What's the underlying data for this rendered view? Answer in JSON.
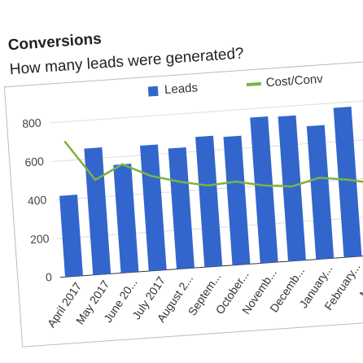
{
  "chart_data": {
    "type": "bar",
    "title": "Conversions",
    "subtitle": "How many leads were generated?",
    "categories": [
      "April 2017",
      "May 2017",
      "June 20...",
      "July 2017",
      "August 2...",
      "Septem...",
      "October...",
      "Novemb...",
      "Decemb...",
      "January...",
      "February...",
      "March..."
    ],
    "series": [
      {
        "name": "Leads",
        "type": "bar",
        "color": "#3366cc",
        "values": [
          420,
          655,
          560,
          650,
          625,
          675,
          665,
          755,
          750,
          690,
          775,
          null
        ]
      },
      {
        "name": "Cost/Conv",
        "type": "line",
        "color": "#7cb342",
        "values": [
          700,
          490,
          560,
          490,
          450,
          420,
          430,
          400,
          385,
          420,
          400,
          370
        ]
      }
    ],
    "ylim": [
      0,
      850
    ],
    "yticks": [
      0,
      200,
      400,
      600,
      800
    ],
    "grid": true,
    "legend": "top"
  }
}
